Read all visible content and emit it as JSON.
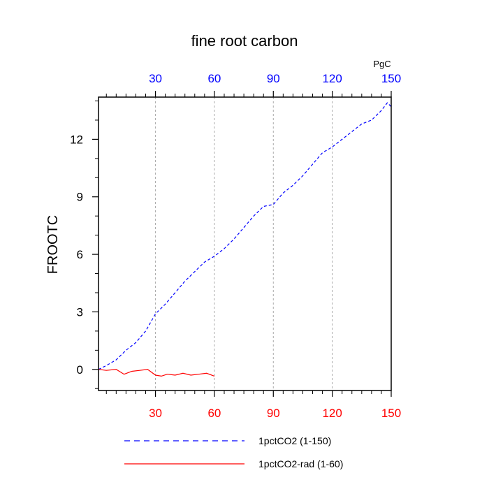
{
  "chart_data": {
    "type": "line",
    "title": "fine root carbon",
    "units_label": "PgC",
    "ylabel": "FROOTC",
    "xlabel": "",
    "xlim": [
      1,
      150
    ],
    "ylim": [
      -1.1,
      14.2
    ],
    "x_ticks": [
      30,
      60,
      90,
      120,
      150
    ],
    "x_tick_labels": [
      "30",
      "60",
      "90",
      "120",
      "150"
    ],
    "y_ticks": [
      0,
      3,
      6,
      9,
      12
    ],
    "y_tick_labels": [
      "0",
      "3",
      "6",
      "9",
      "12"
    ],
    "grid": "vertical-dashed",
    "top_axis_color": "#0000ff",
    "bottom_axis_color": "#ff0000",
    "series": [
      {
        "name": "1pctCO2 (1-150)",
        "color": "#0000ff",
        "dash": "dashed",
        "x": [
          1,
          5,
          10,
          15,
          20,
          25,
          30,
          35,
          40,
          45,
          50,
          55,
          60,
          65,
          70,
          75,
          80,
          85,
          90,
          95,
          100,
          105,
          110,
          115,
          120,
          125,
          130,
          135,
          140,
          145,
          148,
          150
        ],
        "y": [
          0.0,
          0.2,
          0.5,
          1.0,
          1.4,
          2.0,
          2.9,
          3.4,
          4.0,
          4.6,
          5.1,
          5.6,
          5.9,
          6.3,
          6.8,
          7.4,
          8.0,
          8.5,
          8.6,
          9.2,
          9.6,
          10.1,
          10.7,
          11.3,
          11.6,
          12.0,
          12.4,
          12.8,
          13.0,
          13.5,
          13.9,
          13.7
        ]
      },
      {
        "name": "1pctCO2-rad (1-60)",
        "color": "#ff0000",
        "dash": "solid",
        "x": [
          1,
          5,
          10,
          14,
          18,
          22,
          26,
          30,
          33,
          36,
          40,
          44,
          48,
          52,
          56,
          60
        ],
        "y": [
          0.0,
          -0.05,
          0.0,
          -0.25,
          -0.1,
          -0.05,
          0.0,
          -0.3,
          -0.35,
          -0.25,
          -0.3,
          -0.2,
          -0.3,
          -0.25,
          -0.2,
          -0.35
        ]
      }
    ],
    "legend": {
      "placement": "bottom",
      "entries": [
        "1pctCO2 (1-150)",
        "1pctCO2-rad (1-60)"
      ]
    }
  }
}
